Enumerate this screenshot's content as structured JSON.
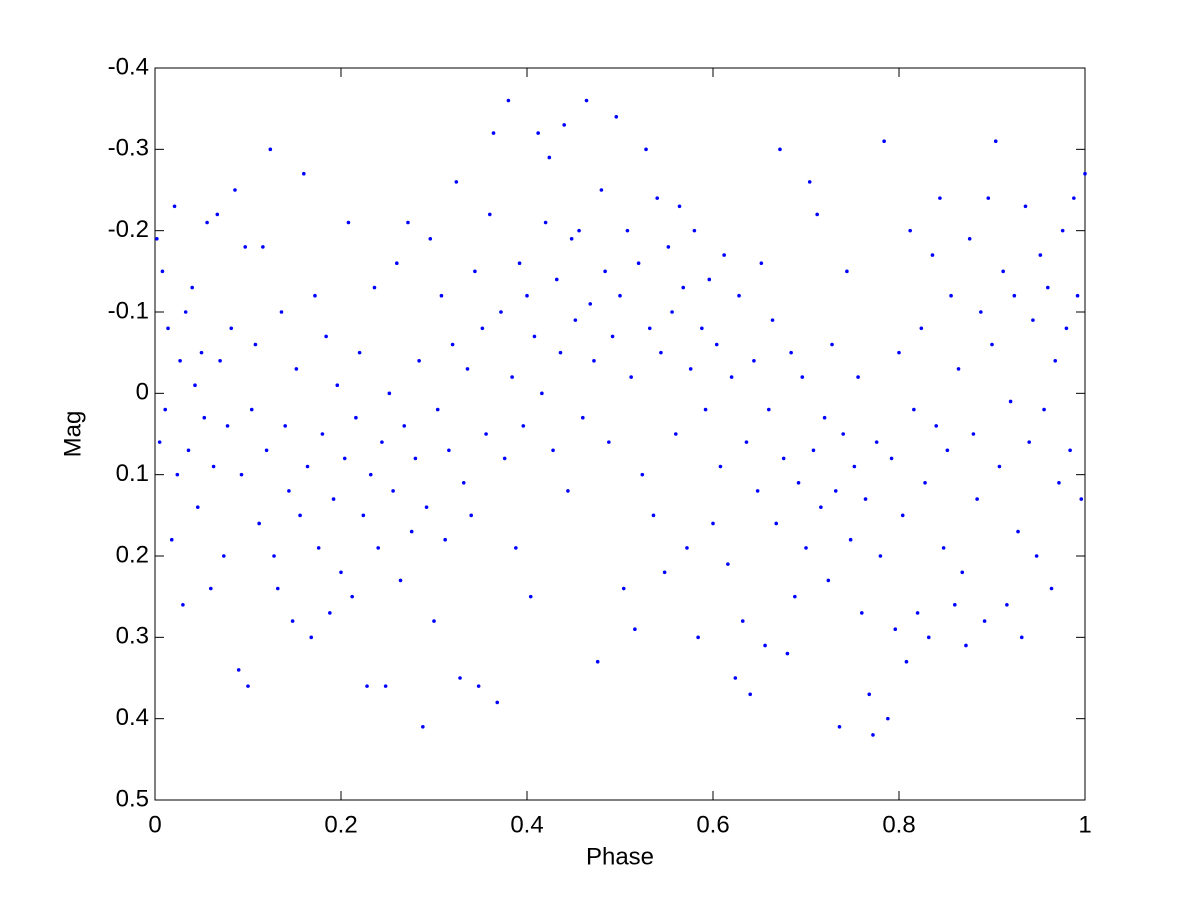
{
  "chart_data": {
    "type": "scatter",
    "xlabel": "Phase",
    "ylabel": "Mag",
    "color": "#0000ff",
    "xlim": [
      0,
      1
    ],
    "xticks": [
      0,
      0.2,
      0.4,
      0.6,
      0.8,
      1
    ],
    "ylim": [
      -0.4,
      0.5
    ],
    "yticks": [
      -0.4,
      -0.3,
      -0.2,
      -0.1,
      0,
      0.1,
      0.2,
      0.3,
      0.4,
      0.5
    ],
    "y_reversed": true,
    "grid": false,
    "x": [
      0.002,
      0.005,
      0.008,
      0.011,
      0.014,
      0.018,
      0.021,
      0.024,
      0.027,
      0.03,
      0.033,
      0.036,
      0.04,
      0.043,
      0.046,
      0.05,
      0.053,
      0.056,
      0.06,
      0.063,
      0.067,
      0.07,
      0.074,
      0.078,
      0.082,
      0.086,
      0.09,
      0.093,
      0.097,
      0.1,
      0.104,
      0.108,
      0.112,
      0.116,
      0.12,
      0.124,
      0.128,
      0.132,
      0.136,
      0.14,
      0.144,
      0.148,
      0.152,
      0.156,
      0.16,
      0.164,
      0.168,
      0.172,
      0.176,
      0.18,
      0.184,
      0.188,
      0.192,
      0.196,
      0.2,
      0.204,
      0.208,
      0.212,
      0.216,
      0.22,
      0.224,
      0.228,
      0.232,
      0.236,
      0.24,
      0.244,
      0.248,
      0.252,
      0.256,
      0.26,
      0.264,
      0.268,
      0.272,
      0.276,
      0.28,
      0.284,
      0.288,
      0.292,
      0.296,
      0.3,
      0.304,
      0.308,
      0.312,
      0.316,
      0.32,
      0.324,
      0.328,
      0.332,
      0.336,
      0.34,
      0.344,
      0.348,
      0.352,
      0.356,
      0.36,
      0.364,
      0.368,
      0.372,
      0.376,
      0.38,
      0.384,
      0.388,
      0.392,
      0.396,
      0.4,
      0.404,
      0.408,
      0.412,
      0.416,
      0.42,
      0.424,
      0.428,
      0.432,
      0.436,
      0.44,
      0.444,
      0.448,
      0.452,
      0.456,
      0.46,
      0.464,
      0.468,
      0.472,
      0.476,
      0.48,
      0.484,
      0.488,
      0.492,
      0.496,
      0.5,
      0.504,
      0.508,
      0.512,
      0.516,
      0.52,
      0.524,
      0.528,
      0.532,
      0.536,
      0.54,
      0.544,
      0.548,
      0.552,
      0.556,
      0.56,
      0.564,
      0.568,
      0.572,
      0.576,
      0.58,
      0.584,
      0.588,
      0.592,
      0.596,
      0.6,
      0.604,
      0.608,
      0.612,
      0.616,
      0.62,
      0.624,
      0.628,
      0.632,
      0.636,
      0.64,
      0.644,
      0.648,
      0.652,
      0.656,
      0.66,
      0.664,
      0.668,
      0.672,
      0.676,
      0.68,
      0.684,
      0.688,
      0.692,
      0.696,
      0.7,
      0.704,
      0.708,
      0.712,
      0.716,
      0.72,
      0.724,
      0.728,
      0.732,
      0.736,
      0.74,
      0.744,
      0.748,
      0.752,
      0.756,
      0.76,
      0.764,
      0.768,
      0.772,
      0.776,
      0.78,
      0.784,
      0.788,
      0.792,
      0.796,
      0.8,
      0.804,
      0.808,
      0.812,
      0.816,
      0.82,
      0.824,
      0.828,
      0.832,
      0.836,
      0.84,
      0.844,
      0.848,
      0.852,
      0.856,
      0.86,
      0.864,
      0.868,
      0.872,
      0.876,
      0.88,
      0.884,
      0.888,
      0.892,
      0.896,
      0.9,
      0.904,
      0.908,
      0.912,
      0.916,
      0.92,
      0.924,
      0.928,
      0.932,
      0.936,
      0.94,
      0.944,
      0.948,
      0.952,
      0.956,
      0.96,
      0.964,
      0.968,
      0.972,
      0.976,
      0.98,
      0.984,
      0.988,
      0.992,
      0.996,
      1.0
    ],
    "values": [
      -0.19,
      0.06,
      -0.15,
      0.02,
      -0.08,
      0.18,
      -0.23,
      0.1,
      -0.04,
      0.26,
      -0.1,
      0.07,
      -0.13,
      -0.01,
      0.14,
      -0.05,
      0.03,
      -0.21,
      0.24,
      0.09,
      -0.22,
      -0.04,
      0.2,
      0.04,
      -0.08,
      -0.25,
      0.34,
      0.1,
      -0.18,
      0.36,
      0.02,
      -0.06,
      0.16,
      -0.18,
      0.07,
      -0.3,
      0.2,
      0.24,
      -0.1,
      0.04,
      0.12,
      0.28,
      -0.03,
      0.15,
      -0.27,
      0.09,
      0.3,
      -0.12,
      0.19,
      0.05,
      -0.07,
      0.27,
      0.13,
      -0.01,
      0.22,
      0.08,
      -0.21,
      0.25,
      0.03,
      -0.05,
      0.15,
      0.36,
      0.1,
      -0.13,
      0.19,
      0.06,
      0.36,
      0.0,
      0.12,
      -0.16,
      0.23,
      0.04,
      -0.21,
      0.17,
      0.08,
      -0.04,
      0.41,
      0.14,
      -0.19,
      0.28,
      0.02,
      -0.12,
      0.18,
      0.07,
      -0.06,
      -0.26,
      0.35,
      0.11,
      -0.03,
      0.15,
      -0.15,
      0.36,
      -0.08,
      0.05,
      -0.22,
      -0.32,
      0.38,
      -0.1,
      0.08,
      -0.36,
      -0.02,
      0.19,
      -0.16,
      0.04,
      -0.12,
      0.25,
      -0.07,
      -0.32,
      0.0,
      -0.21,
      -0.29,
      0.07,
      -0.14,
      -0.05,
      -0.33,
      0.12,
      -0.19,
      -0.09,
      -0.2,
      0.03,
      -0.36,
      -0.11,
      -0.04,
      0.33,
      -0.25,
      -0.15,
      0.06,
      -0.07,
      -0.34,
      -0.12,
      0.24,
      -0.2,
      -0.02,
      0.29,
      -0.16,
      0.1,
      -0.3,
      -0.08,
      0.15,
      -0.24,
      -0.05,
      0.22,
      -0.18,
      -0.1,
      0.05,
      -0.23,
      -0.13,
      0.19,
      -0.03,
      -0.2,
      0.3,
      -0.08,
      0.02,
      -0.14,
      0.16,
      -0.06,
      0.09,
      -0.17,
      0.21,
      -0.02,
      0.35,
      -0.12,
      0.28,
      0.06,
      0.37,
      -0.04,
      0.12,
      -0.16,
      0.31,
      0.02,
      -0.09,
      0.16,
      -0.3,
      0.08,
      0.32,
      -0.05,
      0.25,
      0.11,
      -0.02,
      0.19,
      -0.26,
      0.07,
      -0.22,
      0.14,
      0.03,
      0.23,
      -0.06,
      0.12,
      0.41,
      0.05,
      -0.15,
      0.18,
      0.09,
      -0.02,
      0.27,
      0.13,
      0.37,
      0.42,
      0.06,
      0.2,
      -0.31,
      0.4,
      0.08,
      0.29,
      -0.05,
      0.15,
      0.33,
      -0.2,
      0.02,
      0.27,
      -0.08,
      0.11,
      0.3,
      -0.17,
      0.04,
      -0.24,
      0.19,
      0.07,
      -0.12,
      0.26,
      -0.03,
      0.22,
      0.31,
      -0.19,
      0.05,
      0.13,
      -0.1,
      0.28,
      -0.24,
      -0.06,
      -0.31,
      0.09,
      -0.15,
      0.26,
      0.01,
      -0.12,
      0.17,
      0.3,
      -0.23,
      0.06,
      -0.09,
      0.2,
      -0.17,
      0.02,
      -0.13,
      0.24,
      -0.04,
      0.11,
      -0.2,
      -0.08,
      0.07,
      -0.24,
      -0.12,
      0.13,
      -0.27
    ]
  }
}
